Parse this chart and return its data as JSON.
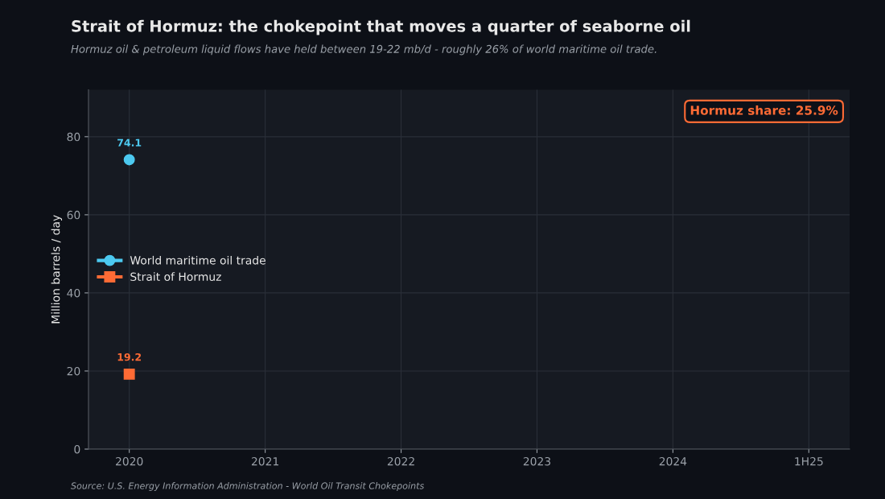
{
  "chart_data": {
    "type": "line",
    "title": "Strait of Hormuz: the chokepoint that moves a quarter of seaborne oil",
    "subtitle": "Hormuz oil & petroleum liquid flows have held between 19-22 mb/d - roughly 26% of world maritime oil trade.",
    "ylabel": "Million barrels / day",
    "x": [
      2020
    ],
    "series": [
      {
        "name": "World maritime oil trade",
        "color": "#4cc9f0",
        "values": [
          74.1
        ],
        "marker": "circle"
      },
      {
        "name": "Strait of Hormuz",
        "color": "#ff6b35",
        "values": [
          19.2
        ],
        "marker": "square"
      }
    ],
    "xlim": [
      2019.7,
      2025.3
    ],
    "xticks": [
      2020,
      2021,
      2022,
      2023,
      2024,
      {
        "value": 2025,
        "label": "1H25"
      }
    ],
    "ylim": [
      0,
      92
    ],
    "yticks": [
      0,
      20,
      40,
      60,
      80
    ],
    "grid": true,
    "legend": "left",
    "data_labels": true,
    "annotations": [
      "Hormuz share: 25.9%",
      "Source: U.S. Energy Information Administration - World Oil Transit Chokepoints"
    ]
  }
}
